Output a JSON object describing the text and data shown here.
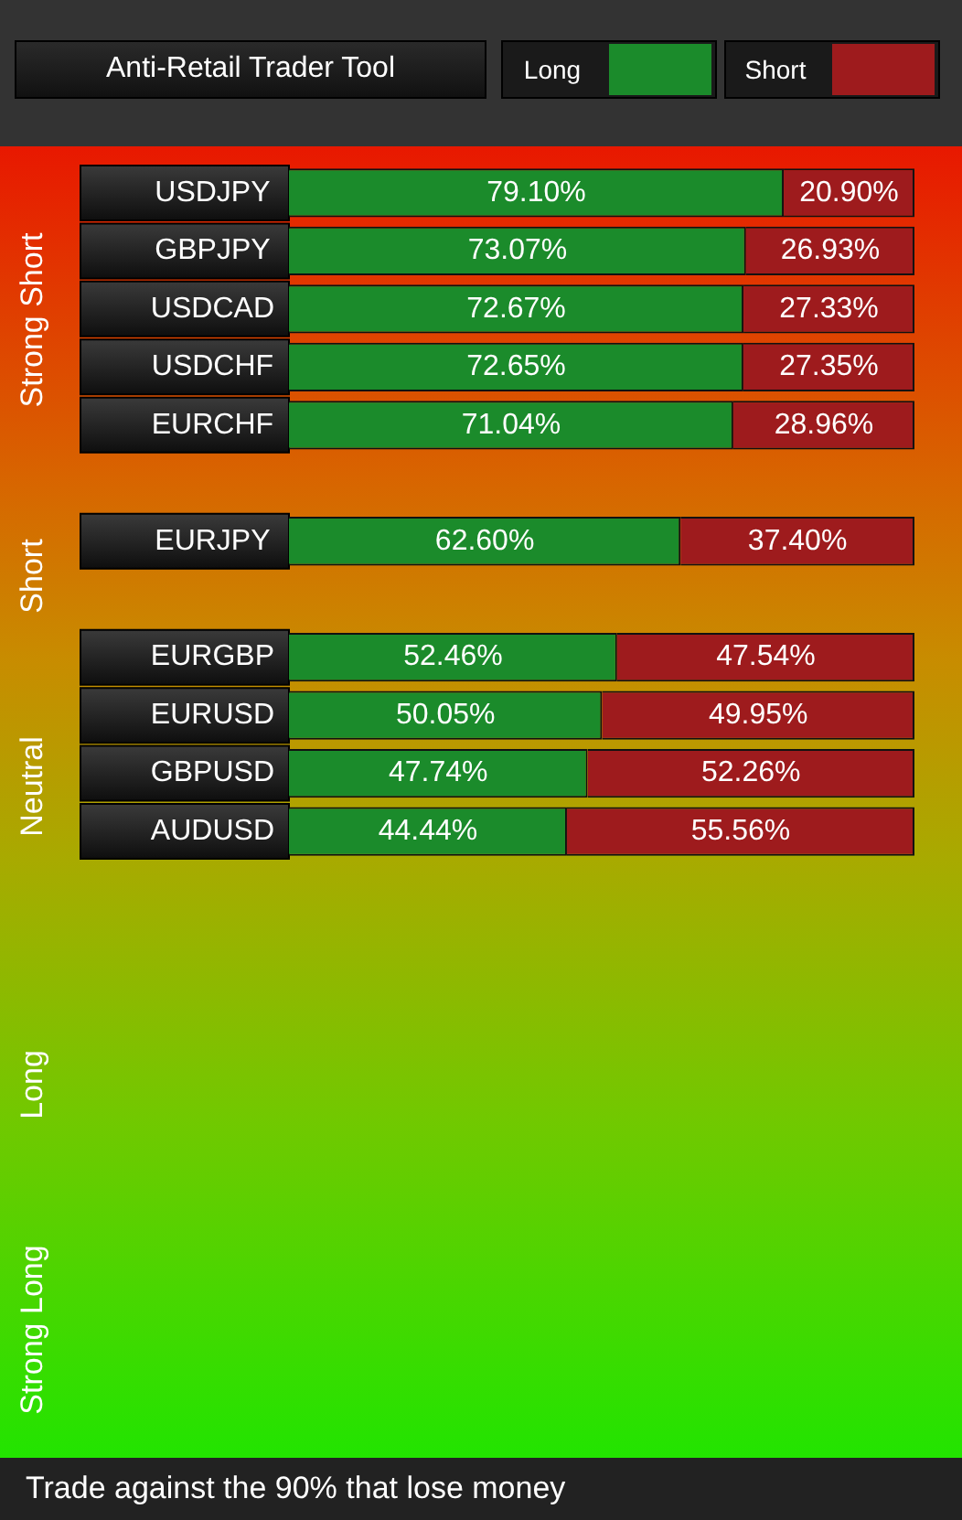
{
  "chart_data": {
    "type": "bar",
    "orientation": "horizontal",
    "stacked": true,
    "title": "Anti-Retail Trader Tool",
    "categories": [
      "USDJPY",
      "GBPJPY",
      "USDCAD",
      "USDCHF",
      "EURCHF",
      null,
      "EURJPY",
      null,
      "EURGBP",
      "EURUSD",
      "GBPUSD",
      "AUDUSD"
    ],
    "series": [
      {
        "name": "Long",
        "color": "#1b8b2b",
        "values": [
          79.1,
          73.07,
          72.67,
          72.65,
          71.04,
          null,
          62.6,
          null,
          52.46,
          50.05,
          47.74,
          44.44
        ],
        "value_labels": [
          "79.10%",
          "73.07%",
          "72.67%",
          "72.65%",
          "71.04%",
          null,
          "62.60%",
          null,
          "52.46%",
          "50.05%",
          "47.74%",
          "44.44%"
        ]
      },
      {
        "name": "Short",
        "color": "#9e1b1d",
        "values": [
          20.9,
          26.93,
          27.33,
          27.35,
          28.96,
          null,
          37.4,
          null,
          47.54,
          49.95,
          52.26,
          55.56
        ],
        "value_labels": [
          "20.90%",
          "26.93%",
          "27.33%",
          "27.35%",
          "28.96%",
          null,
          "37.40%",
          null,
          "47.54%",
          "49.95%",
          "52.26%",
          "55.56%"
        ]
      }
    ],
    "xlim": [
      0,
      100
    ],
    "tick_labels": "y",
    "legend": "top right",
    "annotations": [
      "Strong Short",
      "Short",
      "Neutral",
      "Long",
      "Strong Long",
      "Trade against the 90% that lose money"
    ]
  }
}
